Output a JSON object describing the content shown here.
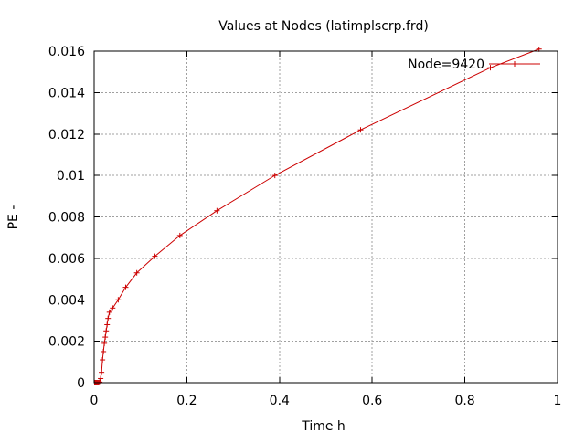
{
  "chart_data": {
    "type": "line",
    "title": "Values at Nodes (latimplscrp.frd)",
    "xlabel": "Time h",
    "ylabel": "PE -",
    "xlim": [
      0,
      1
    ],
    "ylim": [
      0,
      0.016
    ],
    "grid": true,
    "legend_position": "top-right",
    "x_ticks": [
      "0",
      "0.2",
      "0.4",
      "0.6",
      "0.8",
      "1"
    ],
    "y_ticks": [
      "0",
      "0.002",
      "0.004",
      "0.006",
      "0.008",
      "0.01",
      "0.012",
      "0.014",
      "0.016"
    ],
    "series": [
      {
        "name": "Node=9420",
        "color": "#cc0000",
        "x": [
          0.0,
          0.002,
          0.004,
          0.006,
          0.008,
          0.01,
          0.012,
          0.014,
          0.016,
          0.018,
          0.02,
          0.022,
          0.024,
          0.026,
          0.028,
          0.03,
          0.033,
          0.04,
          0.052,
          0.068,
          0.092,
          0.131,
          0.185,
          0.265,
          0.39,
          0.575,
          0.855,
          0.96
        ],
        "y": [
          0.0,
          0.0,
          0.0,
          0.0,
          0.0,
          0.0,
          3e-05,
          0.0002,
          0.0005,
          0.0011,
          0.0015,
          0.0019,
          0.0022,
          0.0025,
          0.0028,
          0.0031,
          0.0034,
          0.0036,
          0.004,
          0.0046,
          0.0053,
          0.0061,
          0.0071,
          0.0083,
          0.01,
          0.0122,
          0.0152,
          0.0161
        ]
      }
    ]
  }
}
